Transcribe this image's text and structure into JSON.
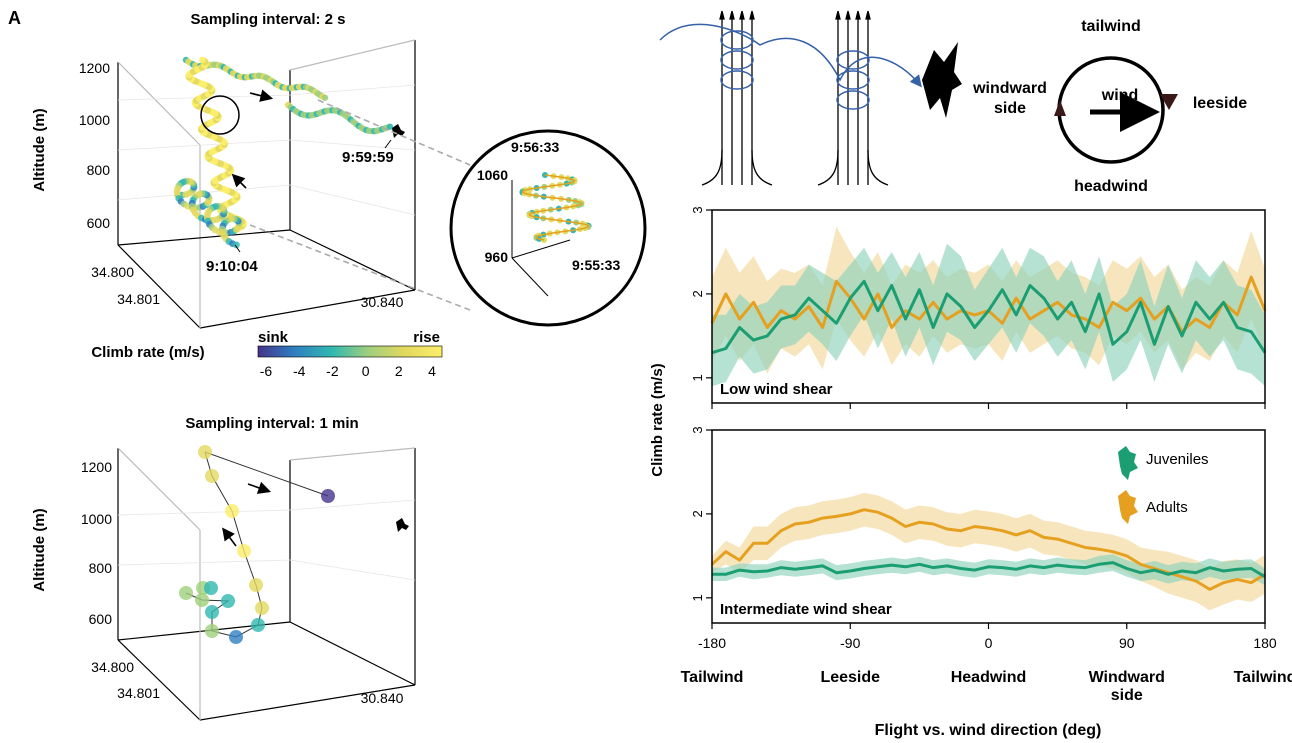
{
  "panel_letter": "A",
  "colors": {
    "juveniles": "#1a9e72",
    "adults": "#e6a020",
    "juveniles_band": "#8fd3bd",
    "adults_band": "#f3d79a",
    "track_blue": "#3561a8",
    "gridline": "#cfcfcf"
  },
  "panel_3d_2s": {
    "title": "Sampling interval: 2 s",
    "zlabel": "Altitude (m)",
    "zticks": [
      "1200",
      "1000",
      "800",
      "600"
    ],
    "yticks": [
      "34.800",
      "34.801"
    ],
    "xtick": "30.840",
    "time_labels": [
      "9:59:59",
      "9:10:04"
    ]
  },
  "inset": {
    "time_top": "9:56:33",
    "time_bottom": "9:55:33",
    "alt_high": "1060",
    "alt_low": "960"
  },
  "colorbar": {
    "title": "Climb rate (m/s)",
    "low_label": "sink",
    "high_label": "rise",
    "ticks": [
      "-6",
      "-4",
      "-2",
      "0",
      "2",
      "4"
    ],
    "gradient": [
      "#45348a",
      "#2f7fc1",
      "#30b8b0",
      "#9fcf7c",
      "#e3d95f",
      "#fbee6a"
    ]
  },
  "panel_3d_1min": {
    "title": "Sampling interval: 1 min",
    "zlabel": "Altitude (m)",
    "zticks": [
      "1200",
      "1000",
      "800",
      "600"
    ],
    "yticks": [
      "34.800",
      "34.801"
    ],
    "xtick": "30.840"
  },
  "schematic": {
    "tailwind": "tailwind",
    "headwind": "headwind",
    "windward": "windward",
    "windward2": "side",
    "leeside": "leeside",
    "wind": "wind"
  },
  "chart_data": [
    {
      "type": "line",
      "panel_label": "Low wind shear",
      "ylabel": "Climb rate (m/s)",
      "xlim": [
        -180,
        180
      ],
      "ylim": [
        0.7,
        3.0
      ],
      "yticks": [
        1,
        2,
        3
      ],
      "x": [
        -180,
        -171,
        -162,
        -153,
        -144,
        -135,
        -126,
        -117,
        -108,
        -99,
        -90,
        -81,
        -72,
        -63,
        -54,
        -45,
        -36,
        -27,
        -18,
        -9,
        0,
        9,
        18,
        27,
        36,
        45,
        54,
        63,
        72,
        81,
        90,
        99,
        108,
        117,
        126,
        135,
        144,
        153,
        162,
        171,
        180
      ],
      "series": [
        {
          "name": "Juveniles",
          "values": [
            1.3,
            1.35,
            1.6,
            1.45,
            1.5,
            1.7,
            1.75,
            1.95,
            1.8,
            1.65,
            1.95,
            2.15,
            1.8,
            2.1,
            1.7,
            2.05,
            1.6,
            2.0,
            1.85,
            1.6,
            1.8,
            2.05,
            1.75,
            2.1,
            1.95,
            1.7,
            1.9,
            1.55,
            2.0,
            1.4,
            1.55,
            1.9,
            1.4,
            1.85,
            1.5,
            1.9,
            1.7,
            1.9,
            1.6,
            1.55,
            1.3
          ]
        },
        {
          "name": "Adults",
          "values": [
            1.65,
            2.0,
            1.7,
            1.9,
            1.6,
            1.8,
            1.7,
            1.85,
            1.6,
            2.15,
            1.95,
            1.7,
            2.0,
            1.6,
            1.8,
            1.7,
            1.9,
            1.7,
            1.8,
            1.75,
            1.8,
            1.65,
            1.95,
            1.7,
            1.8,
            1.9,
            1.75,
            1.7,
            1.6,
            1.9,
            1.8,
            1.95,
            1.7,
            1.85,
            1.55,
            1.7,
            1.6,
            1.9,
            1.75,
            2.2,
            1.8
          ]
        }
      ],
      "bands": [
        {
          "name": "Juveniles",
          "lower": [
            0.9,
            0.95,
            1.25,
            1.05,
            1.1,
            1.35,
            1.4,
            1.55,
            1.4,
            1.2,
            1.5,
            1.75,
            1.35,
            1.7,
            1.25,
            1.6,
            1.15,
            1.55,
            1.45,
            1.2,
            1.4,
            1.6,
            1.3,
            1.65,
            1.5,
            1.25,
            1.45,
            1.1,
            1.55,
            0.95,
            1.1,
            1.45,
            0.95,
            1.4,
            1.05,
            1.45,
            1.25,
            1.45,
            1.1,
            1.05,
            0.9
          ],
          "upper": [
            1.75,
            1.75,
            2.0,
            1.85,
            1.9,
            2.1,
            2.1,
            2.35,
            2.25,
            2.15,
            2.35,
            2.55,
            2.25,
            2.5,
            2.2,
            2.5,
            2.1,
            2.6,
            2.45,
            2.05,
            2.3,
            2.55,
            2.2,
            2.55,
            2.45,
            2.15,
            2.4,
            2.0,
            2.45,
            1.85,
            2.0,
            2.4,
            1.85,
            2.35,
            1.95,
            2.4,
            2.2,
            2.4,
            2.1,
            2.05,
            1.75
          ]
        },
        {
          "name": "Adults",
          "lower": [
            1.2,
            1.5,
            1.2,
            1.4,
            1.05,
            1.35,
            1.25,
            1.4,
            1.1,
            1.7,
            1.45,
            1.25,
            1.55,
            1.15,
            1.4,
            1.25,
            1.5,
            1.3,
            1.4,
            1.35,
            1.4,
            1.2,
            1.55,
            1.3,
            1.4,
            1.5,
            1.35,
            1.3,
            1.15,
            1.5,
            1.4,
            1.55,
            1.3,
            1.45,
            1.1,
            1.3,
            1.2,
            1.5,
            1.3,
            1.7,
            1.3
          ],
          "upper": [
            2.2,
            2.55,
            2.25,
            2.45,
            2.15,
            2.3,
            2.25,
            2.35,
            2.1,
            2.8,
            2.5,
            2.25,
            2.5,
            2.1,
            2.35,
            2.25,
            2.4,
            2.2,
            2.3,
            2.25,
            2.35,
            2.15,
            2.4,
            2.2,
            2.3,
            2.4,
            2.25,
            2.2,
            2.1,
            2.4,
            2.3,
            2.45,
            2.2,
            2.35,
            2.05,
            2.2,
            2.1,
            2.4,
            2.25,
            2.75,
            2.3
          ]
        }
      ]
    },
    {
      "type": "line",
      "panel_label": "Intermediate wind shear",
      "xlabel": "Flight vs. wind direction (deg)",
      "xlim": [
        -180,
        180
      ],
      "ylim": [
        0.7,
        3.0
      ],
      "yticks": [
        1,
        2,
        3
      ],
      "xticks": [
        -180,
        -90,
        0,
        90,
        180
      ],
      "xcategories": [
        "Tailwind",
        "Leeside",
        "Headwind",
        "Windward side",
        "Tailwind"
      ],
      "legend": [
        {
          "name": "Juveniles"
        },
        {
          "name": "Adults"
        }
      ],
      "x": [
        -180,
        -171,
        -162,
        -153,
        -144,
        -135,
        -126,
        -117,
        -108,
        -99,
        -90,
        -81,
        -72,
        -63,
        -54,
        -45,
        -36,
        -27,
        -18,
        -9,
        0,
        9,
        18,
        27,
        36,
        45,
        54,
        63,
        72,
        81,
        90,
        99,
        108,
        117,
        126,
        135,
        144,
        153,
        162,
        171,
        180
      ],
      "series": [
        {
          "name": "Juveniles",
          "values": [
            1.28,
            1.28,
            1.33,
            1.31,
            1.32,
            1.36,
            1.34,
            1.36,
            1.38,
            1.3,
            1.32,
            1.35,
            1.37,
            1.39,
            1.37,
            1.4,
            1.36,
            1.38,
            1.35,
            1.33,
            1.37,
            1.36,
            1.34,
            1.38,
            1.36,
            1.39,
            1.37,
            1.36,
            1.4,
            1.42,
            1.35,
            1.3,
            1.33,
            1.28,
            1.32,
            1.3,
            1.36,
            1.32,
            1.34,
            1.35,
            1.25
          ]
        },
        {
          "name": "Adults",
          "values": [
            1.4,
            1.55,
            1.45,
            1.65,
            1.65,
            1.8,
            1.88,
            1.9,
            1.95,
            1.97,
            2.0,
            2.05,
            2.02,
            1.95,
            1.85,
            1.9,
            1.88,
            1.82,
            1.8,
            1.85,
            1.83,
            1.8,
            1.75,
            1.8,
            1.72,
            1.7,
            1.65,
            1.6,
            1.58,
            1.55,
            1.5,
            1.4,
            1.35,
            1.3,
            1.25,
            1.2,
            1.1,
            1.18,
            1.22,
            1.18,
            1.28
          ]
        }
      ],
      "bands": [
        {
          "name": "Juveniles",
          "lower": [
            1.2,
            1.2,
            1.25,
            1.22,
            1.24,
            1.27,
            1.25,
            1.27,
            1.29,
            1.21,
            1.23,
            1.26,
            1.28,
            1.3,
            1.28,
            1.31,
            1.27,
            1.29,
            1.26,
            1.24,
            1.28,
            1.27,
            1.25,
            1.29,
            1.27,
            1.3,
            1.28,
            1.27,
            1.3,
            1.32,
            1.25,
            1.2,
            1.22,
            1.17,
            1.21,
            1.19,
            1.25,
            1.21,
            1.23,
            1.24,
            1.15
          ],
          "upper": [
            1.36,
            1.36,
            1.41,
            1.4,
            1.4,
            1.45,
            1.43,
            1.45,
            1.47,
            1.39,
            1.41,
            1.44,
            1.46,
            1.48,
            1.46,
            1.49,
            1.45,
            1.47,
            1.44,
            1.42,
            1.46,
            1.45,
            1.43,
            1.47,
            1.45,
            1.48,
            1.46,
            1.45,
            1.5,
            1.52,
            1.45,
            1.4,
            1.44,
            1.39,
            1.43,
            1.41,
            1.47,
            1.43,
            1.45,
            1.46,
            1.35
          ]
        },
        {
          "name": "Adults",
          "lower": [
            1.3,
            1.4,
            1.3,
            1.45,
            1.45,
            1.6,
            1.68,
            1.7,
            1.75,
            1.77,
            1.8,
            1.85,
            1.82,
            1.75,
            1.65,
            1.7,
            1.68,
            1.62,
            1.6,
            1.65,
            1.63,
            1.6,
            1.55,
            1.6,
            1.52,
            1.5,
            1.45,
            1.4,
            1.38,
            1.35,
            1.3,
            1.2,
            1.13,
            1.05,
            1.0,
            0.95,
            0.85,
            0.92,
            0.98,
            0.95,
            1.05
          ],
          "upper": [
            1.5,
            1.68,
            1.6,
            1.85,
            1.85,
            2.0,
            2.08,
            2.1,
            2.15,
            2.17,
            2.2,
            2.25,
            2.22,
            2.15,
            2.05,
            2.1,
            2.08,
            2.02,
            2.0,
            2.05,
            2.03,
            2.0,
            1.95,
            2.0,
            1.92,
            1.9,
            1.85,
            1.8,
            1.78,
            1.75,
            1.7,
            1.6,
            1.57,
            1.55,
            1.5,
            1.45,
            1.35,
            1.44,
            1.46,
            1.41,
            1.51
          ]
        }
      ]
    }
  ]
}
